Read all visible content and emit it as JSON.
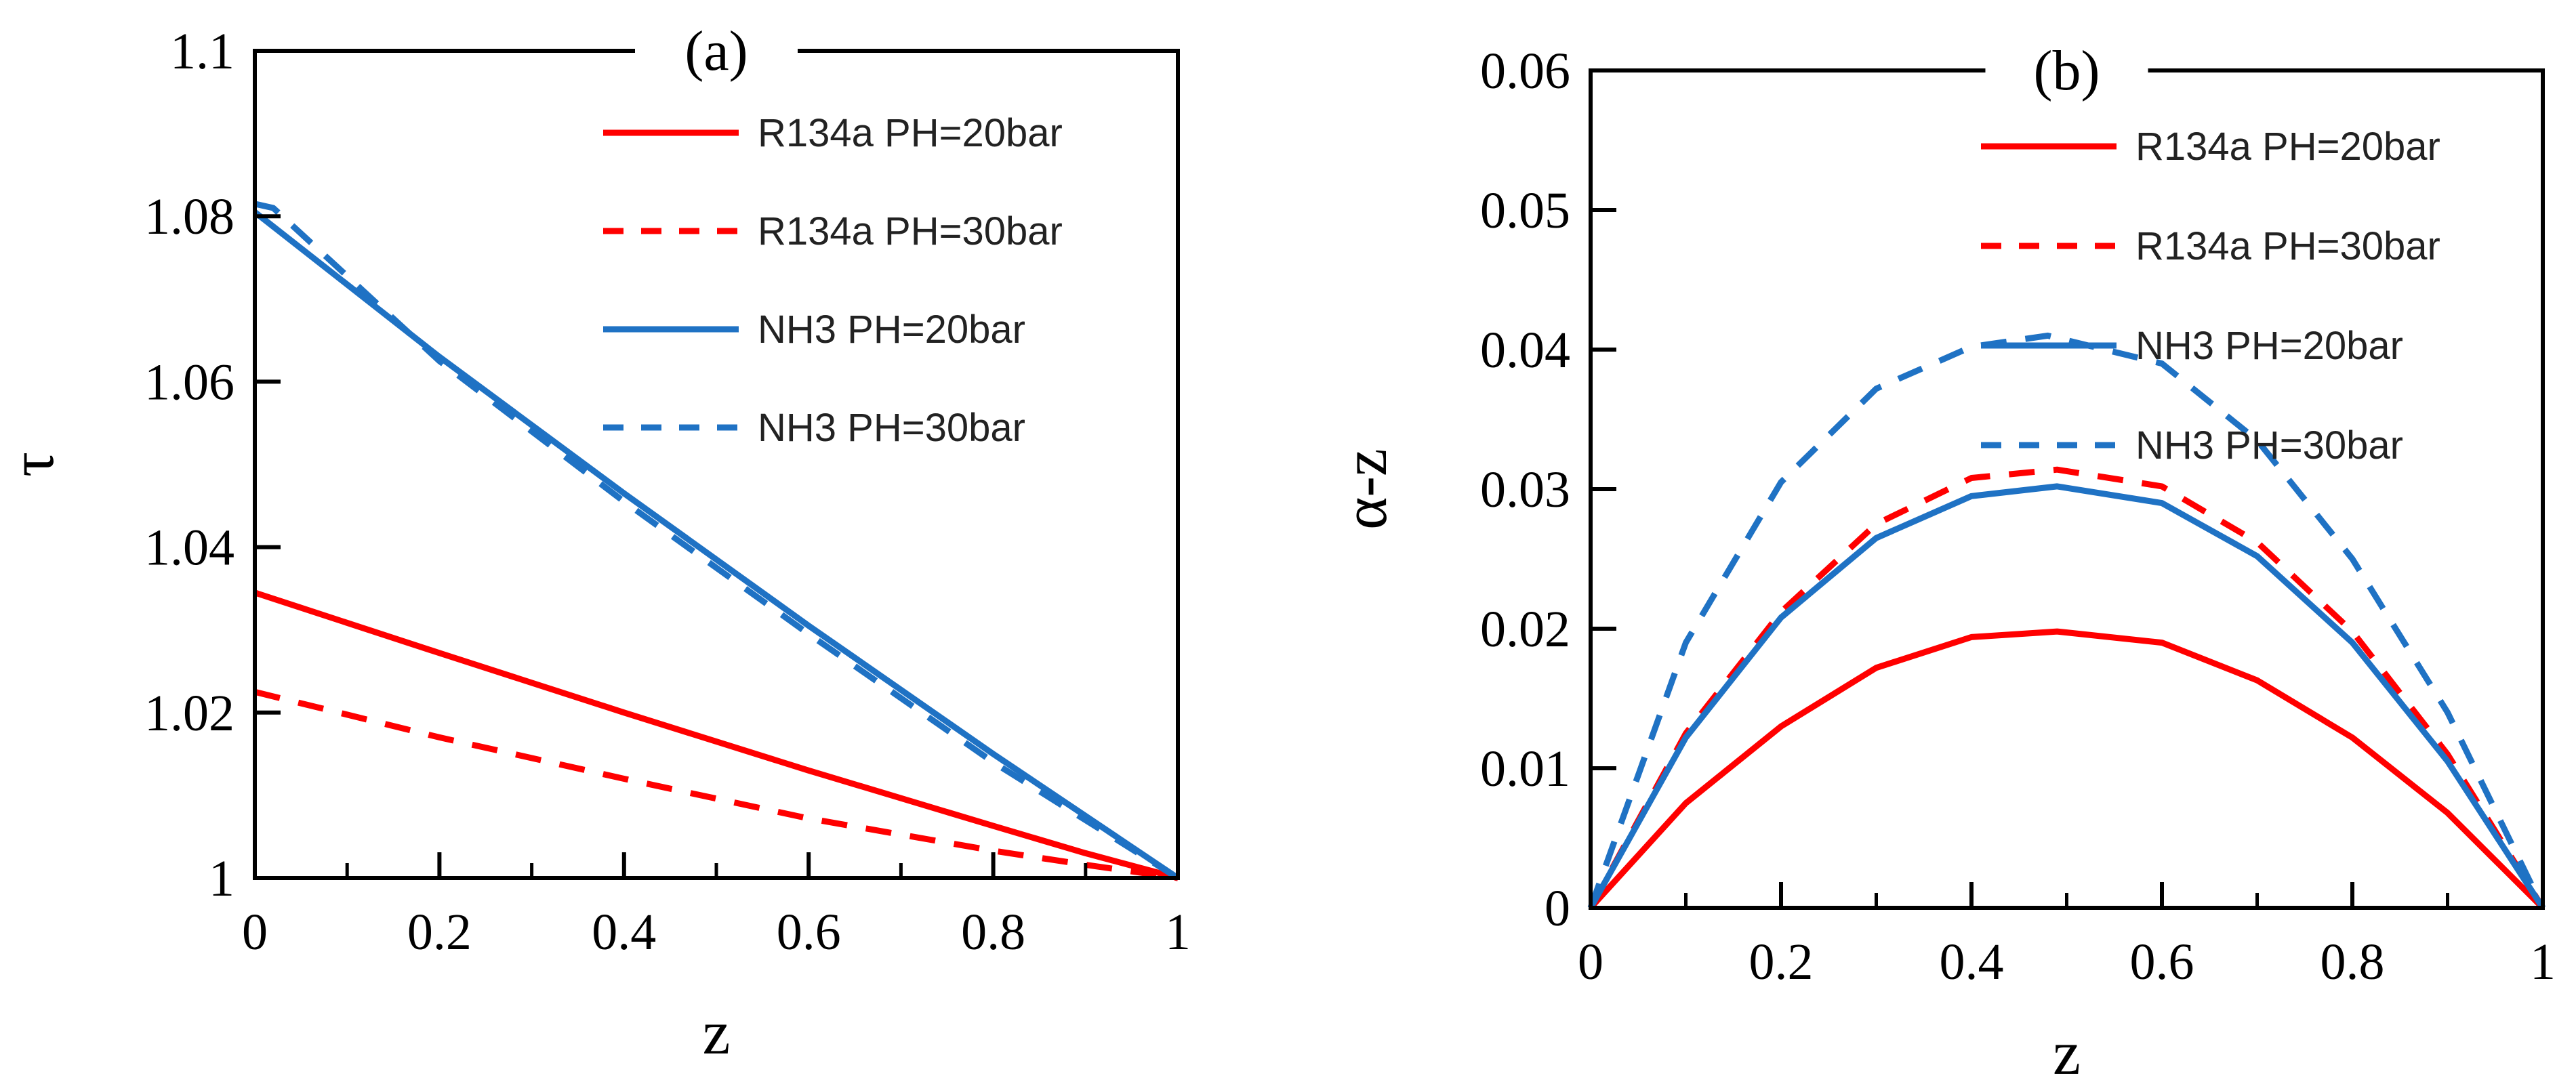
{
  "chart_data": [
    {
      "type": "line",
      "panel_label": "(a)",
      "xlabel": "z",
      "ylabel": "τ",
      "xlim": [
        0,
        1
      ],
      "ylim": [
        1,
        1.1
      ],
      "xticks": [
        "0",
        "0.2",
        "0.4",
        "0.6",
        "0.8",
        "1"
      ],
      "yticks": [
        "1",
        "1.02",
        "1.04",
        "1.06",
        "1.08",
        "1.1"
      ],
      "grid": false,
      "legend_position": "top-right",
      "series": [
        {
          "name": "R134a PH=20bar",
          "color": "#ff0000",
          "dash": "solid",
          "x": [
            0,
            0.2,
            0.4,
            0.6,
            0.8,
            0.9,
            1.0
          ],
          "y": [
            1.0345,
            1.0272,
            1.02,
            1.013,
            1.0063,
            1.003,
            1.0
          ]
        },
        {
          "name": "R134a PH=30bar",
          "color": "#ff0000",
          "dash": "dashed",
          "x": [
            0,
            0.2,
            0.4,
            0.6,
            0.8,
            0.9,
            0.95,
            1.0
          ],
          "y": [
            1.0225,
            1.017,
            1.012,
            1.0072,
            1.0033,
            1.0016,
            1.0008,
            1.0
          ]
        },
        {
          "name": "NH3 PH=20bar",
          "color": "#1f72c4",
          "dash": "solid",
          "x": [
            0,
            0.2,
            0.4,
            0.6,
            0.8,
            1.0
          ],
          "y": [
            1.0805,
            1.063,
            1.0465,
            1.0305,
            1.015,
            1.0
          ]
        },
        {
          "name": "NH3 PH=30bar",
          "color": "#1f72c4",
          "dash": "dashed",
          "x": [
            0,
            0.02,
            0.2,
            0.4,
            0.6,
            0.8,
            1.0
          ],
          "y": [
            1.0815,
            1.081,
            1.0625,
            1.0455,
            1.0295,
            1.014,
            1.0
          ]
        }
      ]
    },
    {
      "type": "line",
      "panel_label": "(b)",
      "xlabel": "z",
      "ylabel": "α-z",
      "xlim": [
        0,
        1
      ],
      "ylim": [
        0,
        0.06
      ],
      "xticks": [
        "0",
        "0.2",
        "0.4",
        "0.6",
        "0.8",
        "1"
      ],
      "yticks": [
        "0",
        "0.01",
        "0.02",
        "0.03",
        "0.04",
        "0.05",
        "0.06"
      ],
      "grid": false,
      "legend_position": "top-right",
      "series": [
        {
          "name": "R134a PH=20bar",
          "color": "#ff0000",
          "dash": "solid",
          "x": [
            0,
            0.1,
            0.2,
            0.3,
            0.4,
            0.49,
            0.6,
            0.7,
            0.8,
            0.9,
            1.0
          ],
          "y": [
            0,
            0.0075,
            0.013,
            0.0172,
            0.0194,
            0.0198,
            0.019,
            0.0163,
            0.0122,
            0.0068,
            0
          ]
        },
        {
          "name": "R134a PH=30bar",
          "color": "#ff0000",
          "dash": "dashed",
          "x": [
            0,
            0.1,
            0.2,
            0.3,
            0.4,
            0.49,
            0.6,
            0.7,
            0.8,
            0.9,
            1.0
          ],
          "y": [
            0,
            0.0125,
            0.0212,
            0.0275,
            0.0308,
            0.0314,
            0.0302,
            0.0262,
            0.0198,
            0.011,
            0
          ]
        },
        {
          "name": "NH3 PH=20bar",
          "color": "#1f72c4",
          "dash": "solid",
          "x": [
            0,
            0.1,
            0.2,
            0.3,
            0.4,
            0.49,
            0.6,
            0.7,
            0.8,
            0.9,
            1.0
          ],
          "y": [
            0,
            0.0122,
            0.0208,
            0.0265,
            0.0295,
            0.0302,
            0.029,
            0.0252,
            0.019,
            0.0105,
            0
          ]
        },
        {
          "name": "NH3 PH=30bar",
          "color": "#1f72c4",
          "dash": "dashed",
          "x": [
            0,
            0.1,
            0.2,
            0.3,
            0.4,
            0.48,
            0.6,
            0.7,
            0.8,
            0.9,
            1.0
          ],
          "y": [
            0,
            0.019,
            0.0305,
            0.0372,
            0.0402,
            0.041,
            0.039,
            0.0335,
            0.025,
            0.014,
            0
          ]
        }
      ]
    }
  ]
}
